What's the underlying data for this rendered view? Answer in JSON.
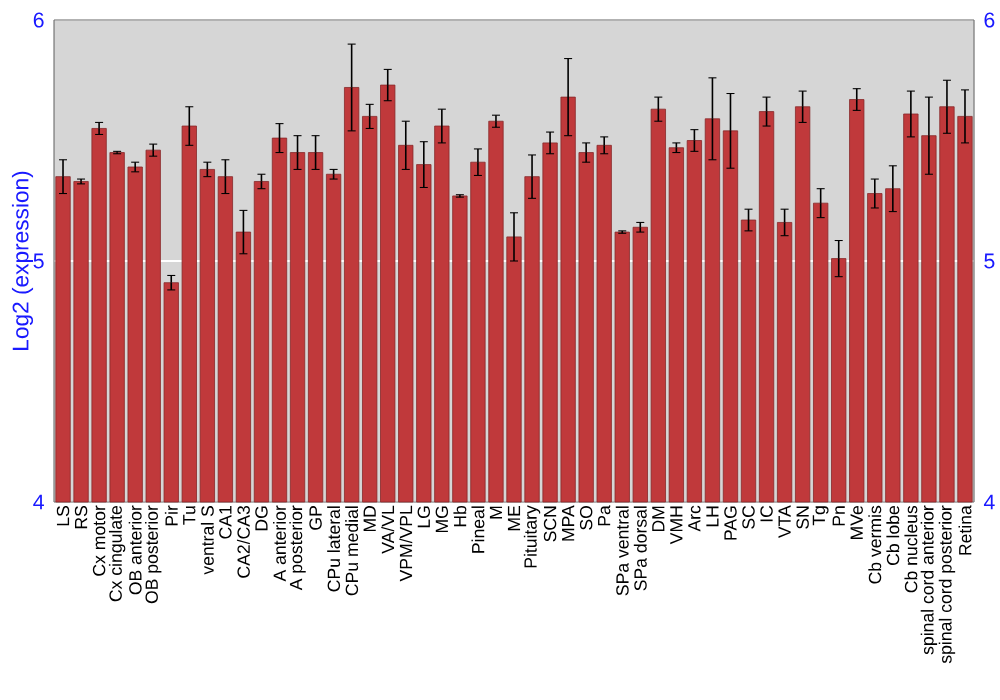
{
  "chart_data": {
    "type": "bar",
    "ylabel": "Log2 (expression)",
    "categories": [
      "LS",
      "RS",
      "Cx motor",
      "Cx cingulate",
      "OB anterior",
      "OB posterior",
      "Pir",
      "Tu",
      "ventral S",
      "CA1",
      "CA2/CA3",
      "DG",
      "A anterior",
      "A posterior",
      "GP",
      "CPu lateral",
      "CPu medial",
      "MD",
      "VA/VL",
      "VPM/VPL",
      "LG",
      "MG",
      "Hb",
      "Pineal",
      "M",
      "ME",
      "Pituitary",
      "SCN",
      "MPA",
      "SO",
      "Pa",
      "SPa ventral",
      "SPa dorsal",
      "DM",
      "VMH",
      "Arc",
      "LH",
      "PAG",
      "SC",
      "IC",
      "VTA",
      "SN",
      "Tg",
      "Pn",
      "MVe",
      "Cb vermis",
      "Cb lobe",
      "Cb nucleus",
      "spinal cord anterior",
      "spinal cord posterior",
      "Retina"
    ],
    "values": [
      5.35,
      5.33,
      5.55,
      5.45,
      5.39,
      5.46,
      4.91,
      5.56,
      5.38,
      5.35,
      5.12,
      5.33,
      5.51,
      5.45,
      5.45,
      5.36,
      5.72,
      5.6,
      5.73,
      5.48,
      5.4,
      5.56,
      5.27,
      5.41,
      5.58,
      5.1,
      5.35,
      5.49,
      5.68,
      5.45,
      5.48,
      5.12,
      5.14,
      5.63,
      5.47,
      5.5,
      5.59,
      5.54,
      5.17,
      5.62,
      5.16,
      5.64,
      5.24,
      5.01,
      5.67,
      5.28,
      5.3,
      5.61,
      5.52,
      5.64,
      5.6
    ],
    "errors": [
      0.07,
      0.01,
      0.025,
      0.005,
      0.02,
      0.025,
      0.03,
      0.08,
      0.03,
      0.07,
      0.09,
      0.03,
      0.06,
      0.07,
      0.07,
      0.02,
      0.18,
      0.05,
      0.065,
      0.1,
      0.095,
      0.07,
      0.005,
      0.055,
      0.025,
      0.1,
      0.09,
      0.045,
      0.16,
      0.04,
      0.035,
      0.005,
      0.02,
      0.05,
      0.02,
      0.045,
      0.17,
      0.155,
      0.045,
      0.06,
      0.055,
      0.065,
      0.06,
      0.075,
      0.045,
      0.06,
      0.095,
      0.095,
      0.16,
      0.11,
      0.11
    ],
    "color": "#c0393b",
    "ylim": [
      4,
      6
    ],
    "yticks": [
      4,
      5,
      6
    ],
    "y2lim": [
      4,
      6
    ],
    "y2ticks": [
      4,
      5,
      6
    ],
    "grid": "y"
  }
}
